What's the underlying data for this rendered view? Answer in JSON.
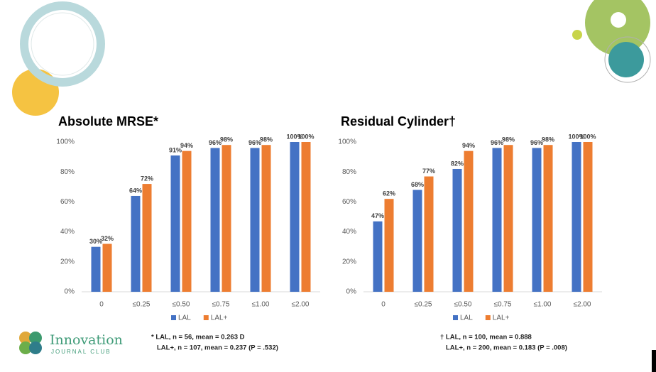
{
  "chart_data": [
    {
      "type": "bar",
      "title": "Absolute MRSE*",
      "categories": [
        "0",
        "≤0.25",
        "≤0.50",
        "≤0.75",
        "≤1.00",
        "≤2.00"
      ],
      "series": [
        {
          "name": "LAL",
          "color": "#4472c4",
          "values": [
            30,
            64,
            91,
            96,
            96,
            100
          ],
          "value_labels": [
            "30%",
            "64%",
            "91%",
            "96%",
            "96%",
            "100%"
          ]
        },
        {
          "name": "LAL+",
          "color": "#ed7d31",
          "values": [
            32,
            72,
            94,
            98,
            98,
            100
          ],
          "value_labels": [
            "32%",
            "72%",
            "94%",
            "98%",
            "98%",
            "100%"
          ]
        }
      ],
      "ylim": [
        0,
        100
      ],
      "yticks": [
        {
          "value": 0,
          "label": "0%"
        },
        {
          "value": 20,
          "label": "20%"
        },
        {
          "value": 40,
          "label": "40%"
        },
        {
          "value": 60,
          "label": "60%"
        },
        {
          "value": 80,
          "label": "80%"
        },
        {
          "value": 100,
          "label": "100%"
        }
      ],
      "grid": false,
      "legend": "bottom",
      "notes": [
        "* LAL, n = 56, mean = 0.263 D",
        "LAL+, n = 107, mean = 0.237 (P = .532)"
      ]
    },
    {
      "type": "bar",
      "title": "Residual Cylinder†",
      "categories": [
        "0",
        "≤0.25",
        "≤0.50",
        "≤0.75",
        "≤1.00",
        "≤2.00"
      ],
      "series": [
        {
          "name": "LAL",
          "color": "#4472c4",
          "values": [
            47,
            68,
            82,
            96,
            96,
            100
          ],
          "value_labels": [
            "47%",
            "68%",
            "82%",
            "96%",
            "96%",
            "100%"
          ]
        },
        {
          "name": "LAL+",
          "color": "#ed7d31",
          "values": [
            62,
            77,
            94,
            98,
            98,
            100
          ],
          "value_labels": [
            "62%",
            "77%",
            "94%",
            "98%",
            "98%",
            "100%"
          ]
        }
      ],
      "ylim": [
        0,
        100
      ],
      "yticks": [
        {
          "value": 0,
          "label": "0%"
        },
        {
          "value": 20,
          "label": "20%"
        },
        {
          "value": 40,
          "label": "40%"
        },
        {
          "value": 60,
          "label": "60%"
        },
        {
          "value": 80,
          "label": "80%"
        },
        {
          "value": 100,
          "label": "100%"
        }
      ],
      "grid": false,
      "legend": "bottom",
      "notes": [
        "† LAL, n = 100, mean = 0.888",
        "LAL+, n = 200, mean = 0.183 (P = .008)"
      ]
    }
  ],
  "logo": {
    "name": "Innovation",
    "subtitle": "JOURNAL CLUB"
  }
}
